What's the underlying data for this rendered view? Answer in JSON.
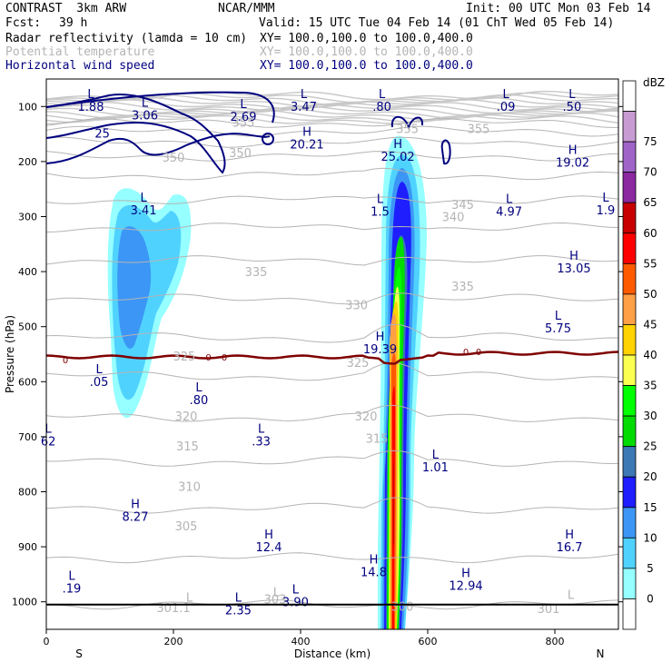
{
  "header": {
    "model": "CONTRAST  3km ARW",
    "org": "NCAR/MMM",
    "init": "Init: 00 UTC Mon 03 Feb 14",
    "fcst_label": "Fcst:",
    "fcst_value": "39 h",
    "valid": "Valid: 15 UTC Tue 04 Feb 14 (01 ChT Wed 05 Feb 14)"
  },
  "fields": [
    {
      "name": "Radar reflectivity (lamda = 10 cm)",
      "xy": "XY= 100.0,100.0 to 100.0,400.0",
      "color": "#000000"
    },
    {
      "name": "Potential temperature",
      "xy": "XY= 100.0,100.0 to 100.0,400.0",
      "color": "#b4b4b4"
    },
    {
      "name": "Horizontal wind speed",
      "xy": "XY= 100.0,100.0 to 100.0,400.0",
      "color": "#00007f"
    }
  ],
  "chart_data": {
    "type": "cross-section",
    "xlabel": "Distance (km)",
    "ylabel": "Pressure (hPa)",
    "xlim": [
      0,
      900
    ],
    "ylim": [
      1050,
      50
    ],
    "x_ticks": [
      0,
      200,
      400,
      600,
      800
    ],
    "y_ticks": [
      100,
      200,
      300,
      400,
      500,
      600,
      700,
      800,
      900,
      1000
    ],
    "direction_left": "S",
    "direction_right": "N",
    "colorbar": {
      "unit": "dBZ",
      "levels": [
        "0",
        "5",
        "10",
        "15",
        "20",
        "25",
        "30",
        "35",
        "40",
        "45",
        "50",
        "55",
        "60",
        "65",
        "70",
        "75"
      ],
      "colors": [
        "#ffffff",
        "#96ffff",
        "#50d2ff",
        "#3c96f5",
        "#1e1eff",
        "#3c78b4",
        "#00dc00",
        "#00ff00",
        "#faff50",
        "#ffd200",
        "#ffa046",
        "#ff5a00",
        "#ff0000",
        "#c80000",
        "#8c28a0",
        "#a064c8",
        "#c89bd2",
        "#ffffff"
      ]
    },
    "theta_labels": [
      {
        "value": "355",
        "x": 310,
        "p": 128
      },
      {
        "value": "355",
        "x": 568,
        "p": 140
      },
      {
        "value": "355",
        "x": 680,
        "p": 140
      },
      {
        "value": "350",
        "x": 200,
        "p": 192
      },
      {
        "value": "350",
        "x": 305,
        "p": 184
      },
      {
        "value": "345",
        "x": 655,
        "p": 278
      },
      {
        "value": "340",
        "x": 640,
        "p": 300
      },
      {
        "value": "335",
        "x": 330,
        "p": 400
      },
      {
        "value": "335",
        "x": 655,
        "p": 426
      },
      {
        "value": "330",
        "x": 488,
        "p": 460
      },
      {
        "value": "325",
        "x": 217,
        "p": 553
      },
      {
        "value": "325",
        "x": 490,
        "p": 565
      },
      {
        "value": "320",
        "x": 220,
        "p": 662
      },
      {
        "value": "320",
        "x": 503,
        "p": 662
      },
      {
        "value": "315",
        "x": 222,
        "p": 717
      },
      {
        "value": "315",
        "x": 520,
        "p": 703
      },
      {
        "value": "310",
        "x": 225,
        "p": 790
      },
      {
        "value": "305",
        "x": 220,
        "p": 862
      },
      {
        "value": "301.1",
        "x": 200,
        "p": 1010
      },
      {
        "value": "303",
        "x": 360,
        "p": 995
      },
      {
        "value": "300",
        "x": 560,
        "p": 1008
      },
      {
        "value": "301",
        "x": 790,
        "p": 1012
      }
    ],
    "wind_contour_labels": [
      {
        "value": "25",
        "x": 88,
        "p": 150
      },
      {
        "value": "0",
        "x": 30,
        "p": 560
      },
      {
        "value": "0",
        "x": 255,
        "p": 555
      },
      {
        "value": "0",
        "x": 280,
        "p": 555
      },
      {
        "value": "0",
        "x": 660,
        "p": 545
      },
      {
        "value": "0",
        "x": 680,
        "p": 545
      }
    ],
    "wind_extrema": [
      {
        "type": "L",
        "value": "1.88",
        "x": 70,
        "p": 85
      },
      {
        "type": "L",
        "value": "3.06",
        "x": 155,
        "p": 100
      },
      {
        "type": "L",
        "value": "2.69",
        "x": 310,
        "p": 103
      },
      {
        "type": "L",
        "value": "3.47",
        "x": 405,
        "p": 85
      },
      {
        "type": "L",
        "value": ".80",
        "x": 528,
        "p": 85
      },
      {
        "type": "L",
        "value": ".09",
        "x": 723,
        "p": 85
      },
      {
        "type": "L",
        "value": ".50",
        "x": 827,
        "p": 85
      },
      {
        "type": "H",
        "value": "20.21",
        "x": 410,
        "p": 153
      },
      {
        "type": "H",
        "value": "25.02",
        "x": 553,
        "p": 175
      },
      {
        "type": "H",
        "value": "19.02",
        "x": 828,
        "p": 186
      },
      {
        "type": "L",
        "value": "1.9",
        "x": 880,
        "p": 273
      },
      {
        "type": "L",
        "value": "3.41",
        "x": 153,
        "p": 273
      },
      {
        "type": "L",
        "value": "1.5",
        "x": 525,
        "p": 275
      },
      {
        "type": "L",
        "value": "4.97",
        "x": 728,
        "p": 275
      },
      {
        "type": "H",
        "value": "13.05",
        "x": 830,
        "p": 378
      },
      {
        "type": "L",
        "value": "5.75",
        "x": 805,
        "p": 487
      },
      {
        "type": "H",
        "value": "19.39",
        "x": 525,
        "p": 525
      },
      {
        "type": "L",
        "value": ".05",
        "x": 83,
        "p": 585
      },
      {
        "type": "L",
        "value": ".80",
        "x": 240,
        "p": 618
      },
      {
        "type": "L",
        "value": "62",
        "x": 3,
        "p": 693
      },
      {
        "type": "L",
        "value": ".33",
        "x": 338,
        "p": 693
      },
      {
        "type": "L",
        "value": "1.01",
        "x": 612,
        "p": 740
      },
      {
        "type": "H",
        "value": "8.27",
        "x": 140,
        "p": 830
      },
      {
        "type": "H",
        "value": "12.4",
        "x": 350,
        "p": 885
      },
      {
        "type": "H",
        "value": "16.7",
        "x": 823,
        "p": 885
      },
      {
        "type": "H",
        "value": "14.8",
        "x": 515,
        "p": 930
      },
      {
        "type": "H",
        "value": "12.94",
        "x": 660,
        "p": 955
      },
      {
        "type": "L",
        "value": ".19",
        "x": 40,
        "p": 960
      },
      {
        "type": "L",
        "value": "2.35",
        "x": 302,
        "p": 1000
      },
      {
        "type": "L",
        "value": "3.90",
        "x": 392,
        "p": 985
      }
    ],
    "theta_extrema": [
      {
        "type": "L",
        "value": "",
        "x": 225,
        "p": 1000
      },
      {
        "type": "L",
        "value": "",
        "x": 362,
        "p": 990
      },
      {
        "type": "L",
        "value": "",
        "x": 825,
        "p": 995
      }
    ]
  }
}
